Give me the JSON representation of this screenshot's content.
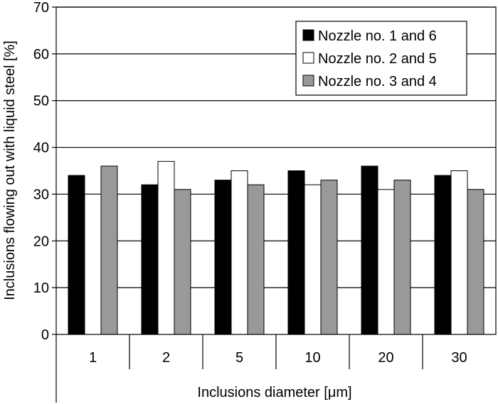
{
  "chart_data": {
    "type": "bar",
    "categories": [
      "1",
      "2",
      "5",
      "10",
      "20",
      "30"
    ],
    "series": [
      {
        "name": "Nozzle no. 1 and 6",
        "values": [
          34,
          32,
          33,
          35,
          36,
          34
        ],
        "color": "#000000"
      },
      {
        "name": "Nozzle no. 2 and 5",
        "values": [
          30,
          37,
          35,
          32,
          31,
          35
        ],
        "color": "#ffffff"
      },
      {
        "name": "Nozzle no. 3 and 4",
        "values": [
          36,
          31,
          32,
          33,
          33,
          31
        ],
        "color": "#999999"
      }
    ],
    "xlabel": "Inclusions diameter [μm]",
    "ylabel": "Inclusions flowing out with liquid steel [%]",
    "ylim": [
      0,
      70
    ],
    "yticks": [
      "0",
      "10",
      "20",
      "30",
      "40",
      "50",
      "60",
      "70"
    ],
    "grid": true,
    "legend": "top-right"
  }
}
